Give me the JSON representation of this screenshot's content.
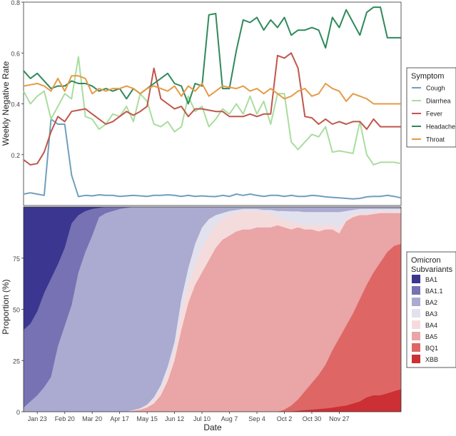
{
  "chart_data": [
    {
      "type": "line",
      "ylabel": "Weekly Negative Rate",
      "ylim": [
        0.0,
        0.8
      ],
      "yticks": [
        "0.2",
        "0.4",
        "0.6",
        "0.8"
      ],
      "legend_title": "Symptom",
      "legend_position": "right",
      "grid": false,
      "weeks": 56,
      "series": [
        {
          "name": "Cough",
          "color": "#6f9fbd",
          "values": [
            0.045,
            0.05,
            0.045,
            0.04,
            0.34,
            0.32,
            0.32,
            0.12,
            0.035,
            0.04,
            0.038,
            0.042,
            0.04,
            0.04,
            0.036,
            0.038,
            0.04,
            0.038,
            0.036,
            0.04,
            0.04,
            0.042,
            0.04,
            0.036,
            0.04,
            0.036,
            0.038,
            0.036,
            0.035,
            0.04,
            0.036,
            0.045,
            0.04,
            0.045,
            0.04,
            0.036,
            0.04,
            0.04,
            0.036,
            0.04,
            0.036,
            0.036,
            0.04,
            0.038,
            0.034,
            0.032,
            0.03,
            0.028,
            0.026,
            0.028,
            0.034,
            0.036,
            0.036,
            0.04,
            0.036,
            0.03
          ]
        },
        {
          "name": "Diarrhea",
          "color": "#a9dd9e",
          "values": [
            0.45,
            0.4,
            0.43,
            0.45,
            0.34,
            0.39,
            0.44,
            0.42,
            0.585,
            0.35,
            0.34,
            0.3,
            0.32,
            0.36,
            0.35,
            0.39,
            0.33,
            0.44,
            0.41,
            0.32,
            0.31,
            0.33,
            0.29,
            0.31,
            0.43,
            0.37,
            0.39,
            0.31,
            0.34,
            0.38,
            0.36,
            0.4,
            0.36,
            0.43,
            0.36,
            0.41,
            0.32,
            0.44,
            0.44,
            0.25,
            0.22,
            0.25,
            0.28,
            0.27,
            0.31,
            0.21,
            0.215,
            0.21,
            0.205,
            0.33,
            0.2,
            0.16,
            0.17,
            0.17,
            0.17,
            0.165
          ]
        },
        {
          "name": "Fever",
          "color": "#c0564c",
          "values": [
            0.18,
            0.16,
            0.165,
            0.21,
            0.29,
            0.35,
            0.33,
            0.37,
            0.375,
            0.38,
            0.36,
            0.34,
            0.32,
            0.33,
            0.35,
            0.37,
            0.355,
            0.37,
            0.39,
            0.54,
            0.42,
            0.4,
            0.38,
            0.39,
            0.35,
            0.38,
            0.38,
            0.375,
            0.37,
            0.37,
            0.35,
            0.35,
            0.35,
            0.36,
            0.35,
            0.36,
            0.36,
            0.59,
            0.58,
            0.6,
            0.54,
            0.35,
            0.345,
            0.32,
            0.34,
            0.32,
            0.33,
            0.32,
            0.33,
            0.33,
            0.3,
            0.34,
            0.31,
            0.31,
            0.31,
            0.31
          ]
        },
        {
          "name": "Headache",
          "color": "#2f8a5a",
          "values": [
            0.53,
            0.5,
            0.52,
            0.49,
            0.46,
            0.47,
            0.47,
            0.49,
            0.48,
            0.48,
            0.47,
            0.45,
            0.46,
            0.45,
            0.46,
            0.42,
            0.46,
            0.44,
            0.46,
            0.48,
            0.5,
            0.52,
            0.48,
            0.47,
            0.4,
            0.48,
            0.47,
            0.75,
            0.755,
            0.46,
            0.46,
            0.61,
            0.73,
            0.72,
            0.74,
            0.69,
            0.73,
            0.7,
            0.74,
            0.67,
            0.69,
            0.69,
            0.7,
            0.69,
            0.62,
            0.74,
            0.7,
            0.77,
            0.72,
            0.67,
            0.76,
            0.78,
            0.78,
            0.66,
            0.66,
            0.66
          ]
        },
        {
          "name": "Throat",
          "color": "#e69a45",
          "values": [
            0.47,
            0.475,
            0.48,
            0.47,
            0.45,
            0.5,
            0.45,
            0.51,
            0.51,
            0.5,
            0.44,
            0.46,
            0.45,
            0.46,
            0.46,
            0.47,
            0.46,
            0.44,
            0.46,
            0.47,
            0.46,
            0.45,
            0.47,
            0.43,
            0.47,
            0.45,
            0.48,
            0.43,
            0.45,
            0.47,
            0.465,
            0.46,
            0.47,
            0.45,
            0.46,
            0.44,
            0.46,
            0.44,
            0.42,
            0.43,
            0.45,
            0.46,
            0.43,
            0.44,
            0.48,
            0.46,
            0.45,
            0.41,
            0.44,
            0.43,
            0.42,
            0.4,
            0.4,
            0.4,
            0.4,
            0.4
          ]
        }
      ]
    },
    {
      "type": "area",
      "stacked": true,
      "ylabel": "Proportion (%)",
      "xlabel": "Date",
      "ylim": [
        0,
        100
      ],
      "yticks": [
        "0",
        "25",
        "50",
        "75"
      ],
      "xticks": [
        "Jan 23",
        "Feb 20",
        "Mar 20",
        "Apr 17",
        "May 15",
        "Jun 12",
        "Jul 10",
        "Aug 7",
        "Sep 4",
        "Oct 2",
        "Oct 30",
        "Nov 27"
      ],
      "legend_title": "Omicron\nSubvariants",
      "legend_position": "right",
      "grid": false,
      "weeks": 56,
      "boundaries_note": "cumulative upper boundary of each layer, in percent",
      "layers": [
        {
          "name": "XBB",
          "color": "#cc2f34",
          "top": [
            0,
            0,
            0,
            0,
            0,
            0,
            0,
            0,
            0,
            0,
            0,
            0,
            0,
            0,
            0,
            0,
            0,
            0,
            0,
            0,
            0,
            0,
            0,
            0,
            0,
            0,
            0,
            0,
            0,
            0,
            0,
            0,
            0,
            0,
            0,
            0,
            0,
            0,
            0,
            0,
            0.5,
            0.8,
            1,
            1.3,
            1.6,
            2,
            2.5,
            3,
            4,
            5,
            7,
            8,
            8,
            9,
            10,
            11
          ]
        },
        {
          "name": "BQ1",
          "color": "#de6766",
          "top": [
            0,
            0,
            0,
            0,
            0,
            0,
            0,
            0,
            0,
            0,
            0,
            0,
            0,
            0,
            0,
            0,
            0,
            0,
            0,
            0,
            0,
            0,
            0,
            0,
            0,
            0,
            0,
            0,
            0,
            0,
            0,
            0,
            0,
            0,
            0,
            0,
            0,
            0,
            1,
            3,
            6,
            10,
            14,
            18,
            23,
            30,
            36,
            42,
            48,
            55,
            62,
            68,
            73,
            78,
            81,
            82
          ]
        },
        {
          "name": "BA5",
          "color": "#eaa5a6",
          "top": [
            0,
            0,
            0,
            0,
            0,
            0,
            0,
            0,
            0,
            0,
            0,
            0,
            0,
            0,
            0,
            0,
            0.5,
            1,
            2,
            4,
            8,
            15,
            25,
            40,
            53,
            62,
            68,
            74,
            80,
            84,
            86,
            88,
            89,
            89,
            90,
            90,
            90,
            91,
            90,
            89,
            90,
            89,
            89,
            88,
            89,
            89,
            87,
            93,
            95,
            96,
            96,
            96.5,
            97,
            97,
            97,
            97
          ]
        },
        {
          "name": "BA4",
          "color": "#f5dcdc",
          "top": [
            0,
            0,
            0,
            0,
            0,
            0,
            0,
            0,
            0,
            0,
            0,
            0,
            0,
            0,
            0,
            0,
            0.7,
            1.5,
            3,
            6,
            11,
            19,
            30,
            49,
            62,
            72,
            80,
            86,
            91,
            94,
            96,
            97,
            98,
            98,
            98,
            97,
            97,
            95,
            94,
            93,
            92,
            91,
            91,
            91,
            91,
            91,
            90,
            94,
            96,
            97,
            97,
            97.5,
            98,
            98,
            98,
            98
          ]
        },
        {
          "name": "BA3",
          "color": "#e2e2ef",
          "top": [
            0,
            0,
            0,
            0,
            0,
            0,
            0,
            0,
            0,
            0,
            0,
            0,
            0,
            0,
            0,
            0,
            0.8,
            1.7,
            3.5,
            7,
            13,
            22,
            34,
            55,
            70,
            82,
            90,
            94,
            96,
            97,
            98,
            98.5,
            99,
            99,
            99,
            98.5,
            98.5,
            98,
            98,
            97.8,
            97.8,
            97.5,
            97.5,
            97.5,
            97.5,
            97.5,
            97.5,
            98,
            98.5,
            99,
            99,
            99,
            99,
            99,
            99,
            99
          ]
        },
        {
          "name": "BA2",
          "color": "#abaad0",
          "top": [
            2,
            5,
            8,
            12,
            17,
            32,
            42,
            52,
            68,
            78,
            86,
            95,
            97,
            98,
            99,
            99.5,
            100,
            100,
            100,
            100,
            100,
            100,
            100,
            100,
            100,
            100,
            100,
            100,
            100,
            100,
            100,
            100,
            100,
            100,
            100,
            100,
            100,
            100,
            100,
            100,
            100,
            100,
            100,
            100,
            100,
            100,
            100,
            100,
            100,
            100,
            100,
            100,
            100,
            100,
            100,
            100
          ]
        },
        {
          "name": "BA1.1",
          "color": "#7672b3",
          "top": [
            40,
            43,
            49,
            58,
            65,
            72,
            80,
            92,
            96,
            98,
            99,
            99.5,
            100,
            100,
            100,
            100,
            100,
            100,
            100,
            100,
            100,
            100,
            100,
            100,
            100,
            100,
            100,
            100,
            100,
            100,
            100,
            100,
            100,
            100,
            100,
            100,
            100,
            100,
            100,
            100,
            100,
            100,
            100,
            100,
            100,
            100,
            100,
            100,
            100,
            100,
            100,
            100,
            100,
            100,
            100,
            100
          ]
        },
        {
          "name": "BA1",
          "color": "#3b3690",
          "top": [
            100,
            100,
            100,
            100,
            100,
            100,
            100,
            100,
            100,
            100,
            100,
            100,
            100,
            100,
            100,
            100,
            100,
            100,
            100,
            100,
            100,
            100,
            100,
            100,
            100,
            100,
            100,
            100,
            100,
            100,
            100,
            100,
            100,
            100,
            100,
            100,
            100,
            100,
            100,
            100,
            100,
            100,
            100,
            100,
            100,
            100,
            100,
            100,
            100,
            100,
            100,
            100,
            100,
            100,
            100,
            100
          ]
        }
      ]
    }
  ]
}
